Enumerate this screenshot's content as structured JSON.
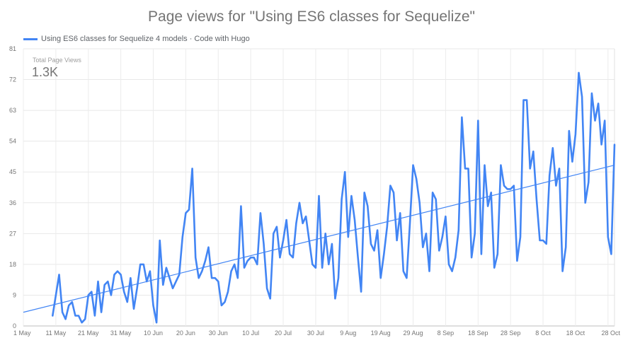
{
  "chart_data": {
    "type": "line",
    "title": "Page views for \"Using ES6 classes for Sequelize\"",
    "series": [
      {
        "name": "Using ES6 classes for Sequelize 4 models · Code with Hugo",
        "color": "#4285f4",
        "values": [
          3,
          9,
          15,
          4,
          2,
          6,
          7,
          3,
          3,
          1,
          2,
          9,
          10,
          3,
          13,
          4,
          12,
          13,
          9,
          15,
          16,
          15,
          10,
          7,
          14,
          5,
          11,
          18,
          18,
          13,
          16,
          6,
          1,
          25,
          12,
          17,
          14,
          11,
          13,
          15,
          26,
          33,
          34,
          46,
          20,
          14,
          16,
          19,
          23,
          14,
          14,
          13,
          6,
          7,
          10,
          16,
          18,
          14,
          35,
          17,
          19,
          20,
          20,
          18,
          33,
          24,
          11,
          8,
          27,
          29,
          20,
          25,
          31,
          21,
          20,
          30,
          36,
          30,
          32,
          25,
          18,
          17,
          38,
          17,
          27,
          18,
          24,
          8,
          14,
          37,
          45,
          26,
          38,
          31,
          20,
          10,
          39,
          35,
          24,
          22,
          28,
          14,
          21,
          29,
          41,
          39,
          25,
          33,
          16,
          14,
          30,
          47,
          43,
          36,
          23,
          27,
          16,
          39,
          37,
          22,
          26,
          32,
          18,
          16,
          20,
          28,
          61,
          46,
          46,
          20,
          27,
          60,
          21,
          47,
          35,
          39,
          17,
          21,
          47,
          41,
          40,
          40,
          41,
          19,
          26,
          66,
          66,
          46,
          51,
          37,
          25,
          25,
          24,
          44,
          52,
          41,
          46,
          16,
          23,
          57,
          48,
          56,
          74,
          67,
          36,
          42,
          68,
          60,
          65,
          53,
          60,
          26,
          21,
          53
        ]
      },
      {
        "name": "trend",
        "color": "#4285f4",
        "values": [
          4,
          47
        ]
      }
    ],
    "x_ticks": [
      "1 May",
      "11 May",
      "21 May",
      "31 May",
      "10 Jun",
      "20 Jun",
      "30 Jun",
      "10 Jul",
      "20 Jul",
      "30 Jul",
      "9 Aug",
      "19 Aug",
      "29 Aug",
      "8 Sep",
      "18 Sep",
      "28 Sep",
      "8 Oct",
      "18 Oct",
      "28 Oct"
    ],
    "y_ticks": [
      "0",
      "9",
      "18",
      "27",
      "36",
      "45",
      "54",
      "63",
      "72",
      "81"
    ],
    "ylim": [
      0,
      81
    ],
    "grid": true,
    "legend": "top-left"
  },
  "scorecard": {
    "label": "Total Page Views",
    "value": "1.3K"
  }
}
